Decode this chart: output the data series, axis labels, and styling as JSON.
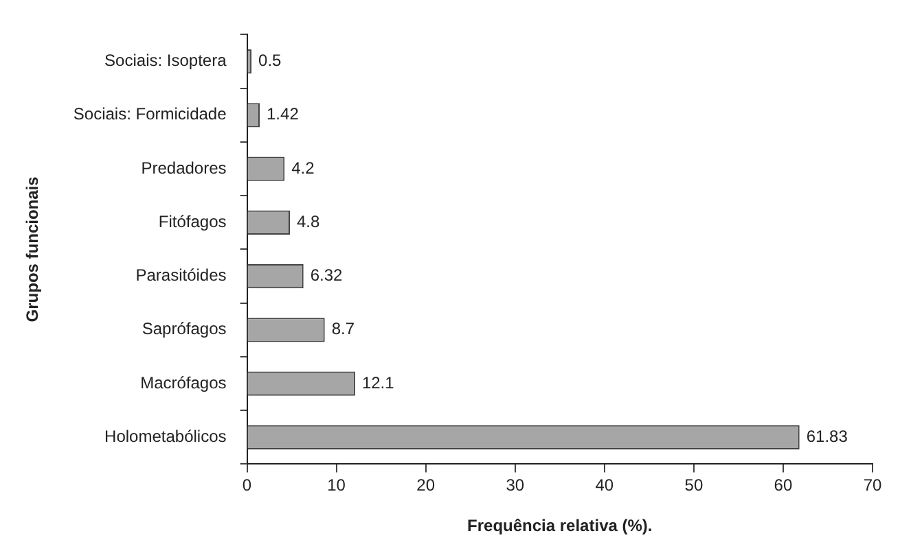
{
  "chart_data": {
    "type": "bar",
    "orientation": "horizontal",
    "xlabel": "Frequência relativa (%).",
    "ylabel": "Grupos funcionais",
    "categories": [
      "Sociais: Isoptera",
      "Sociais: Formicidade",
      "Predadores",
      "Fitófagos",
      "Parasitóides",
      "Saprófagos",
      "Macrófagos",
      "Holometabólicos"
    ],
    "values": [
      0.5,
      1.42,
      4.2,
      4.8,
      6.32,
      8.7,
      12.1,
      61.83
    ],
    "color": "#a6a6a6",
    "data_labels": true,
    "xlim": [
      0,
      70
    ],
    "xticks": [
      0,
      10,
      20,
      30,
      40,
      50,
      60,
      70
    ],
    "grid": false,
    "legend": false
  }
}
